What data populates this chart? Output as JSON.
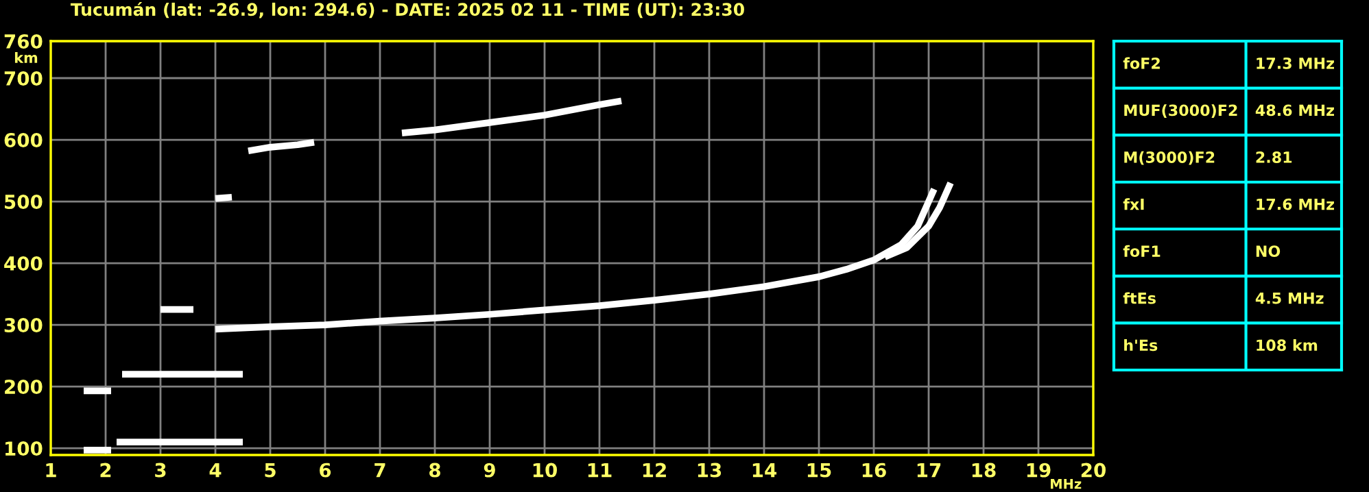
{
  "chart_data": [
    {
      "type": "line",
      "title": "Tucumán (lat: -26.9, lon: 294.6) - DATE: 2025 02 11 - TIME (UT): 23:30",
      "xlabel": "MHz",
      "ylabel": "km",
      "xlim": [
        1,
        20
      ],
      "ylim": [
        89,
        760
      ],
      "xticks": [
        1,
        2,
        3,
        4,
        5,
        6,
        7,
        8,
        9,
        10,
        11,
        12,
        13,
        14,
        15,
        16,
        17,
        18,
        19,
        20
      ],
      "yticks": [
        100,
        200,
        300,
        400,
        500,
        600,
        700,
        760
      ],
      "grid": true,
      "line_style": "solid",
      "marker": "none",
      "series": [
        {
          "color": "#ffffff",
          "x": [
            4.0,
            4.5,
            5,
            6,
            7,
            8,
            9,
            10,
            11,
            12,
            13,
            14,
            15,
            15.5,
            16,
            16.5,
            16.8,
            17.0,
            17.1
          ],
          "values": [
            293,
            295,
            297,
            300,
            306,
            311,
            317,
            324,
            331,
            340,
            350,
            362,
            378,
            390,
            405,
            430,
            460,
            500,
            520
          ]
        },
        {
          "color": "#ffffff",
          "x": [
            16.2,
            16.6,
            17.0,
            17.2,
            17.35,
            17.4
          ],
          "values": [
            410,
            425,
            460,
            490,
            520,
            530
          ]
        },
        {
          "color": "#ffffff",
          "x": [
            4.6,
            5.0,
            5.5,
            5.8
          ],
          "values": [
            582,
            588,
            592,
            596
          ]
        },
        {
          "color": "#ffffff",
          "x": [
            7.4,
            8,
            9,
            10,
            11,
            11.4
          ],
          "values": [
            611,
            616,
            628,
            640,
            657,
            663
          ]
        },
        {
          "color": "#ffffff",
          "x": [
            1.6,
            2.1
          ],
          "values": [
            97,
            97
          ]
        },
        {
          "color": "#ffffff",
          "x": [
            2.2,
            4.5
          ],
          "values": [
            110,
            110
          ]
        },
        {
          "color": "#ffffff",
          "x": [
            1.6,
            2.1
          ],
          "values": [
            193,
            193
          ]
        },
        {
          "color": "#ffffff",
          "x": [
            2.3,
            4.5
          ],
          "values": [
            220,
            220
          ]
        },
        {
          "color": "#ffffff",
          "x": [
            3.0,
            3.6
          ],
          "values": [
            325,
            325
          ]
        },
        {
          "color": "#ffffff",
          "x": [
            4.0,
            4.3
          ],
          "values": [
            505,
            507
          ]
        }
      ]
    },
    {
      "type": "other",
      "annotations": [
        "foF2",
        "17.3 MHz",
        "MUF(3000)F2",
        "48.6 MHz",
        "M(3000)F2",
        "2.81",
        "fxI",
        "17.6 MHz",
        "foF1",
        "NO",
        "ftEs",
        "4.5 MHz",
        "h'Es",
        "108 km"
      ]
    }
  ]
}
